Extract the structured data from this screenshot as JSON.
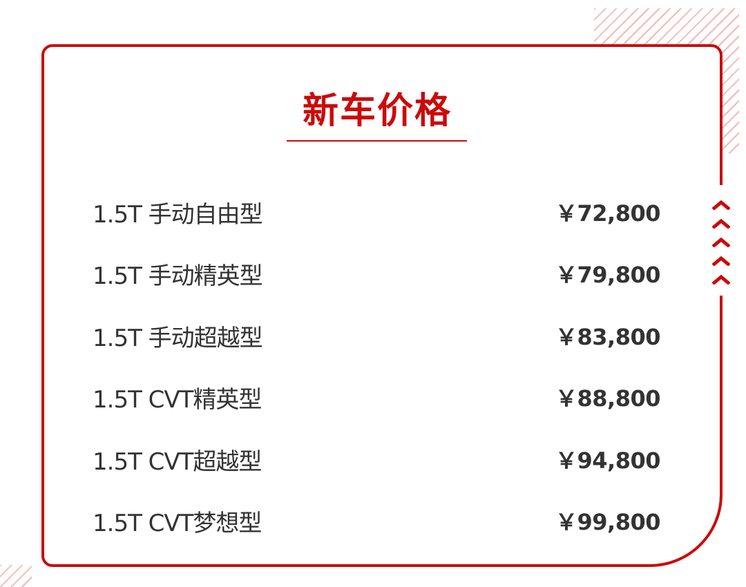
{
  "title": "新车价格",
  "accent_color": "#cc0a0a",
  "decorations": {
    "chevron_icon_count": 5
  },
  "prices": [
    {
      "trim": "1.5T 手动自由型",
      "price": "￥72,800"
    },
    {
      "trim": "1.5T 手动精英型",
      "price": "￥79,800"
    },
    {
      "trim": "1.5T 手动超越型",
      "price": "￥83,800"
    },
    {
      "trim": "1.5T CVT精英型",
      "price": "￥88,800"
    },
    {
      "trim": "1.5T CVT超越型",
      "price": "￥94,800"
    },
    {
      "trim": "1.5T CVT梦想型",
      "price": "￥99,800"
    }
  ]
}
